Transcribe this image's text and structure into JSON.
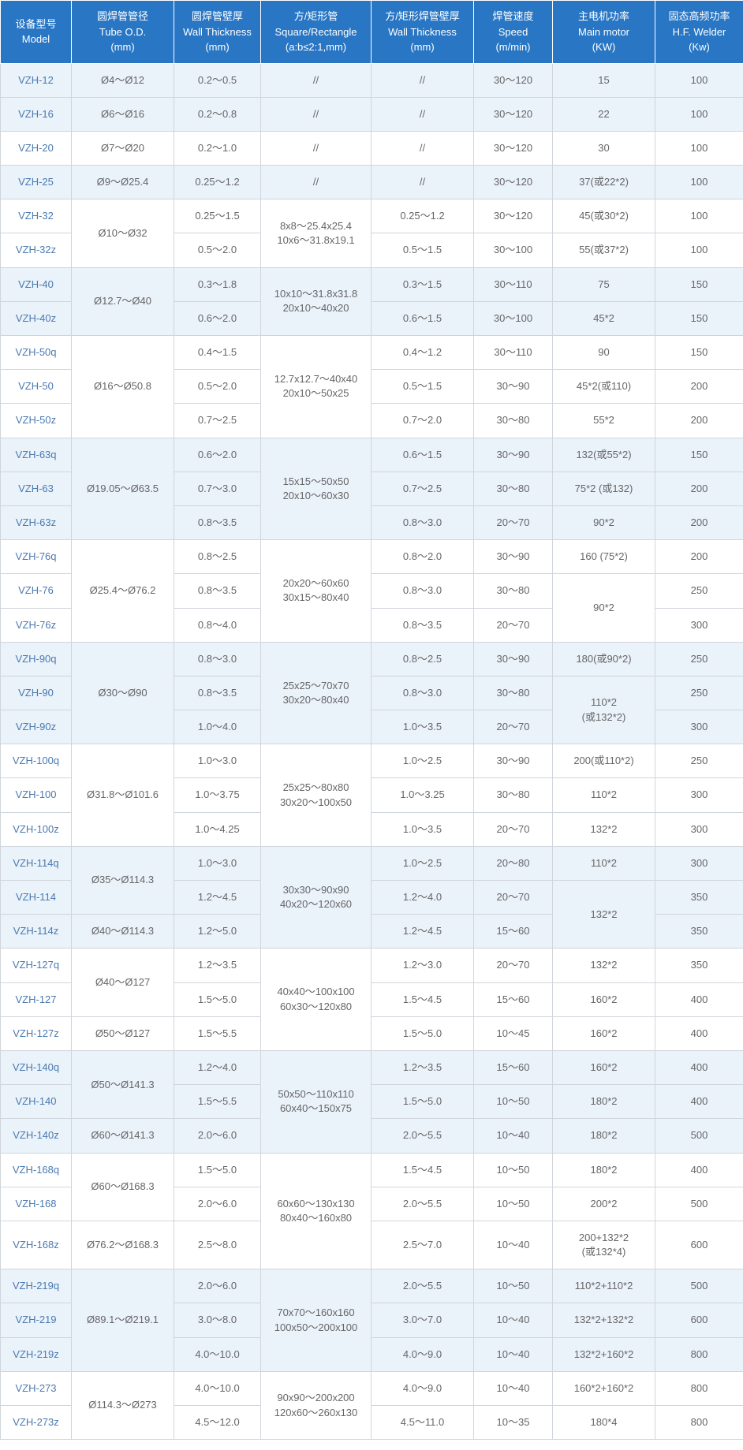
{
  "headers": [
    [
      "设备型号",
      "Model"
    ],
    [
      "圆焊管管径",
      "Tube O.D.",
      "(mm)"
    ],
    [
      "圆焊管壁厚",
      "Wall Thickness",
      "(mm)"
    ],
    [
      "方/矩形管",
      "Square/Rectangle",
      "(a:b≤2:1,mm)"
    ],
    [
      "方/矩形焊管壁厚",
      "Wall Thickness",
      "(mm)"
    ],
    [
      "焊管速度",
      "Speed",
      "(m/min)"
    ],
    [
      "主电机功率",
      "Main motor",
      "(KW)"
    ],
    [
      "固态高频功率",
      "H.F. Welder",
      "(Kw)"
    ]
  ],
  "rows": [
    {
      "tint": true,
      "cells": [
        {
          "t": "VZH-12",
          "m": 1
        },
        {
          "t": "Ø4～Ø12"
        },
        {
          "t": "0.2～0.5"
        },
        {
          "t": "//"
        },
        {
          "t": "//"
        },
        {
          "t": "30～120"
        },
        {
          "t": "15"
        },
        {
          "t": "100"
        }
      ]
    },
    {
      "tint": true,
      "cells": [
        {
          "t": "VZH-16",
          "m": 1
        },
        {
          "t": "Ø6～Ø16"
        },
        {
          "t": "0.2～0.8"
        },
        {
          "t": "//"
        },
        {
          "t": "//"
        },
        {
          "t": "30～120"
        },
        {
          "t": "22"
        },
        {
          "t": "100"
        }
      ]
    },
    {
      "tint": false,
      "cells": [
        {
          "t": "VZH-20",
          "m": 1
        },
        {
          "t": "Ø7～Ø20"
        },
        {
          "t": "0.2～1.0"
        },
        {
          "t": "//"
        },
        {
          "t": "//"
        },
        {
          "t": "30～120"
        },
        {
          "t": "30"
        },
        {
          "t": "100"
        }
      ]
    },
    {
      "tint": true,
      "cells": [
        {
          "t": "VZH-25",
          "m": 1
        },
        {
          "t": "Ø9～Ø25.4"
        },
        {
          "t": "0.25～1.2"
        },
        {
          "t": "//"
        },
        {
          "t": "//"
        },
        {
          "t": "30～120"
        },
        {
          "t": "37(或22*2)"
        },
        {
          "t": "100"
        }
      ]
    },
    {
      "tint": false,
      "cells": [
        {
          "t": "VZH-32",
          "m": 1
        },
        {
          "t": "Ø10～Ø32",
          "rs": 2
        },
        {
          "t": "0.25～1.5"
        },
        {
          "t": "8x8～25.4x25.4\n10x6～31.8x19.1",
          "rs": 2
        },
        {
          "t": "0.25～1.2"
        },
        {
          "t": "30～120"
        },
        {
          "t": "45(或30*2)"
        },
        {
          "t": "100"
        }
      ]
    },
    {
      "tint": false,
      "cells": [
        {
          "t": "VZH-32z",
          "m": 1
        },
        {
          "t": "0.5～2.0"
        },
        {
          "t": "0.5～1.5"
        },
        {
          "t": "30～100"
        },
        {
          "t": "55(或37*2)"
        },
        {
          "t": "100"
        }
      ]
    },
    {
      "tint": true,
      "cells": [
        {
          "t": "VZH-40",
          "m": 1
        },
        {
          "t": "Ø12.7～Ø40",
          "rs": 2
        },
        {
          "t": "0.3～1.8"
        },
        {
          "t": "10x10～31.8x31.8\n20x10～40x20",
          "rs": 2
        },
        {
          "t": "0.3～1.5"
        },
        {
          "t": "30～110"
        },
        {
          "t": "75"
        },
        {
          "t": "150"
        }
      ]
    },
    {
      "tint": true,
      "cells": [
        {
          "t": "VZH-40z",
          "m": 1
        },
        {
          "t": "0.6～2.0"
        },
        {
          "t": "0.6～1.5"
        },
        {
          "t": "30～100"
        },
        {
          "t": "45*2"
        },
        {
          "t": "150"
        }
      ]
    },
    {
      "tint": false,
      "cells": [
        {
          "t": "VZH-50q",
          "m": 1
        },
        {
          "t": "Ø16～Ø50.8",
          "rs": 3
        },
        {
          "t": "0.4～1.5"
        },
        {
          "t": "12.7x12.7～40x40\n20x10～50x25",
          "rs": 3
        },
        {
          "t": "0.4～1.2"
        },
        {
          "t": "30～110"
        },
        {
          "t": "90"
        },
        {
          "t": "150"
        }
      ]
    },
    {
      "tint": false,
      "cells": [
        {
          "t": "VZH-50",
          "m": 1
        },
        {
          "t": "0.5～2.0"
        },
        {
          "t": "0.5～1.5"
        },
        {
          "t": "30～90"
        },
        {
          "t": "45*2(或110)"
        },
        {
          "t": "200"
        }
      ]
    },
    {
      "tint": false,
      "cells": [
        {
          "t": "VZH-50z",
          "m": 1
        },
        {
          "t": "0.7～2.5"
        },
        {
          "t": "0.7～2.0"
        },
        {
          "t": "30～80"
        },
        {
          "t": "55*2"
        },
        {
          "t": "200"
        }
      ]
    },
    {
      "tint": true,
      "cells": [
        {
          "t": "VZH-63q",
          "m": 1
        },
        {
          "t": "Ø19.05～Ø63.5",
          "rs": 3
        },
        {
          "t": "0.6～2.0"
        },
        {
          "t": "15x15～50x50\n20x10～60x30",
          "rs": 3
        },
        {
          "t": "0.6～1.5"
        },
        {
          "t": "30～90"
        },
        {
          "t": "132(或55*2)"
        },
        {
          "t": "150"
        }
      ]
    },
    {
      "tint": true,
      "cells": [
        {
          "t": "VZH-63",
          "m": 1
        },
        {
          "t": "0.7～3.0"
        },
        {
          "t": "0.7～2.5"
        },
        {
          "t": "30～80"
        },
        {
          "t": "75*2 (或132)"
        },
        {
          "t": "200"
        }
      ]
    },
    {
      "tint": true,
      "cells": [
        {
          "t": "VZH-63z",
          "m": 1
        },
        {
          "t": "0.8～3.5"
        },
        {
          "t": "0.8～3.0"
        },
        {
          "t": "20～70"
        },
        {
          "t": "90*2"
        },
        {
          "t": "200"
        }
      ]
    },
    {
      "tint": false,
      "cells": [
        {
          "t": "VZH-76q",
          "m": 1
        },
        {
          "t": "Ø25.4～Ø76.2",
          "rs": 3
        },
        {
          "t": "0.8～2.5"
        },
        {
          "t": "20x20～60x60\n30x15～80x40",
          "rs": 3
        },
        {
          "t": "0.8～2.0"
        },
        {
          "t": "30～90"
        },
        {
          "t": "160 (75*2)"
        },
        {
          "t": "200"
        }
      ]
    },
    {
      "tint": false,
      "cells": [
        {
          "t": "VZH-76",
          "m": 1
        },
        {
          "t": "0.8～3.5"
        },
        {
          "t": "0.8～3.0"
        },
        {
          "t": "30～80"
        },
        {
          "t": "90*2",
          "rs": 2
        },
        {
          "t": "250"
        }
      ]
    },
    {
      "tint": false,
      "cells": [
        {
          "t": "VZH-76z",
          "m": 1
        },
        {
          "t": "0.8～4.0"
        },
        {
          "t": "0.8～3.5"
        },
        {
          "t": "20～70"
        },
        {
          "t": "300"
        }
      ]
    },
    {
      "tint": true,
      "cells": [
        {
          "t": "VZH-90q",
          "m": 1
        },
        {
          "t": "Ø30～Ø90",
          "rs": 3
        },
        {
          "t": "0.8～3.0"
        },
        {
          "t": "25x25～70x70\n30x20～80x40",
          "rs": 3
        },
        {
          "t": "0.8～2.5"
        },
        {
          "t": "30～90"
        },
        {
          "t": "180(或90*2)"
        },
        {
          "t": "250"
        }
      ]
    },
    {
      "tint": true,
      "cells": [
        {
          "t": "VZH-90",
          "m": 1
        },
        {
          "t": "0.8～3.5"
        },
        {
          "t": "0.8～3.0"
        },
        {
          "t": "30～80"
        },
        {
          "t": "110*2\n(或132*2)",
          "rs": 2
        },
        {
          "t": "250"
        }
      ]
    },
    {
      "tint": true,
      "cells": [
        {
          "t": "VZH-90z",
          "m": 1
        },
        {
          "t": "1.0～4.0"
        },
        {
          "t": "1.0～3.5"
        },
        {
          "t": "20～70"
        },
        {
          "t": "300"
        }
      ]
    },
    {
      "tint": false,
      "cells": [
        {
          "t": "VZH-100q",
          "m": 1
        },
        {
          "t": "Ø31.8～Ø101.6",
          "rs": 3
        },
        {
          "t": "1.0～3.0"
        },
        {
          "t": "25x25～80x80\n30x20～100x50",
          "rs": 3
        },
        {
          "t": "1.0～2.5"
        },
        {
          "t": "30～90"
        },
        {
          "t": "200(或110*2)"
        },
        {
          "t": "250"
        }
      ]
    },
    {
      "tint": false,
      "cells": [
        {
          "t": "VZH-100",
          "m": 1
        },
        {
          "t": "1.0～3.75"
        },
        {
          "t": "1.0～3.25"
        },
        {
          "t": "30～80"
        },
        {
          "t": "110*2"
        },
        {
          "t": "300"
        }
      ]
    },
    {
      "tint": false,
      "cells": [
        {
          "t": "VZH-100z",
          "m": 1
        },
        {
          "t": "1.0～4.25"
        },
        {
          "t": "1.0～3.5"
        },
        {
          "t": "20～70"
        },
        {
          "t": "132*2"
        },
        {
          "t": "300"
        }
      ]
    },
    {
      "tint": true,
      "cells": [
        {
          "t": "VZH-114q",
          "m": 1
        },
        {
          "t": "Ø35～Ø114.3",
          "rs": 2
        },
        {
          "t": "1.0～3.0"
        },
        {
          "t": "30x30～90x90\n40x20～120x60",
          "rs": 3
        },
        {
          "t": "1.0～2.5"
        },
        {
          "t": "20～80"
        },
        {
          "t": "110*2"
        },
        {
          "t": "300"
        }
      ]
    },
    {
      "tint": true,
      "cells": [
        {
          "t": "VZH-114",
          "m": 1
        },
        {
          "t": "1.2～4.5"
        },
        {
          "t": "1.2～4.0"
        },
        {
          "t": "20～70"
        },
        {
          "t": "132*2",
          "rs": 2
        },
        {
          "t": "350"
        }
      ]
    },
    {
      "tint": true,
      "cells": [
        {
          "t": "VZH-114z",
          "m": 1
        },
        {
          "t": "Ø40～Ø114.3"
        },
        {
          "t": "1.2～5.0"
        },
        {
          "t": "1.2～4.5"
        },
        {
          "t": "15～60"
        },
        {
          "t": "350"
        }
      ]
    },
    {
      "tint": false,
      "cells": [
        {
          "t": "VZH-127q",
          "m": 1
        },
        {
          "t": "Ø40～Ø127",
          "rs": 2
        },
        {
          "t": "1.2～3.5"
        },
        {
          "t": "40x40～100x100\n60x30～120x80",
          "rs": 3
        },
        {
          "t": "1.2～3.0"
        },
        {
          "t": "20～70"
        },
        {
          "t": "132*2"
        },
        {
          "t": "350"
        }
      ]
    },
    {
      "tint": false,
      "cells": [
        {
          "t": "VZH-127",
          "m": 1
        },
        {
          "t": "1.5～5.0"
        },
        {
          "t": "1.5～4.5"
        },
        {
          "t": "15～60"
        },
        {
          "t": "160*2"
        },
        {
          "t": "400"
        }
      ]
    },
    {
      "tint": false,
      "cells": [
        {
          "t": "VZH-127z",
          "m": 1
        },
        {
          "t": "Ø50～Ø127"
        },
        {
          "t": "1.5～5.5"
        },
        {
          "t": "1.5～5.0"
        },
        {
          "t": "10～45"
        },
        {
          "t": "160*2"
        },
        {
          "t": "400"
        }
      ]
    },
    {
      "tint": true,
      "cells": [
        {
          "t": "VZH-140q",
          "m": 1
        },
        {
          "t": "Ø50～Ø141.3",
          "rs": 2
        },
        {
          "t": "1.2～4.0"
        },
        {
          "t": "50x50～110x110\n60x40～150x75",
          "rs": 3
        },
        {
          "t": "1.2～3.5"
        },
        {
          "t": "15～60"
        },
        {
          "t": "160*2"
        },
        {
          "t": "400"
        }
      ]
    },
    {
      "tint": true,
      "cells": [
        {
          "t": "VZH-140",
          "m": 1
        },
        {
          "t": "1.5～5.5"
        },
        {
          "t": "1.5～5.0"
        },
        {
          "t": "10～50"
        },
        {
          "t": "180*2"
        },
        {
          "t": "400"
        }
      ]
    },
    {
      "tint": true,
      "cells": [
        {
          "t": "VZH-140z",
          "m": 1
        },
        {
          "t": "Ø60～Ø141.3"
        },
        {
          "t": "2.0～6.0"
        },
        {
          "t": "2.0～5.5"
        },
        {
          "t": "10～40"
        },
        {
          "t": "180*2"
        },
        {
          "t": "500"
        }
      ]
    },
    {
      "tint": false,
      "cells": [
        {
          "t": "VZH-168q",
          "m": 1
        },
        {
          "t": "Ø60～Ø168.3",
          "rs": 2
        },
        {
          "t": "1.5～5.0"
        },
        {
          "t": "60x60～130x130\n80x40～160x80",
          "rs": 3
        },
        {
          "t": "1.5～4.5"
        },
        {
          "t": "10～50"
        },
        {
          "t": "180*2"
        },
        {
          "t": "400"
        }
      ]
    },
    {
      "tint": false,
      "cells": [
        {
          "t": "VZH-168",
          "m": 1
        },
        {
          "t": "2.0～6.0"
        },
        {
          "t": "2.0～5.5"
        },
        {
          "t": "10～50"
        },
        {
          "t": "200*2"
        },
        {
          "t": "500"
        }
      ]
    },
    {
      "tint": false,
      "cells": [
        {
          "t": "VZH-168z",
          "m": 1
        },
        {
          "t": "Ø76.2～Ø168.3"
        },
        {
          "t": "2.5～8.0"
        },
        {
          "t": "2.5～7.0"
        },
        {
          "t": "10～40"
        },
        {
          "t": "200+132*2\n(或132*4)"
        },
        {
          "t": "600"
        }
      ]
    },
    {
      "tint": true,
      "cells": [
        {
          "t": "VZH-219q",
          "m": 1
        },
        {
          "t": "Ø89.1～Ø219.1",
          "rs": 3
        },
        {
          "t": "2.0～6.0"
        },
        {
          "t": "70x70～160x160\n100x50～200x100",
          "rs": 3
        },
        {
          "t": "2.0～5.5"
        },
        {
          "t": "10～50"
        },
        {
          "t": "110*2+110*2"
        },
        {
          "t": "500"
        }
      ]
    },
    {
      "tint": true,
      "cells": [
        {
          "t": "VZH-219",
          "m": 1
        },
        {
          "t": "3.0～8.0"
        },
        {
          "t": "3.0～7.0"
        },
        {
          "t": "10～40"
        },
        {
          "t": "132*2+132*2"
        },
        {
          "t": "600"
        }
      ]
    },
    {
      "tint": true,
      "cells": [
        {
          "t": "VZH-219z",
          "m": 1
        },
        {
          "t": "4.0～10.0"
        },
        {
          "t": "4.0～9.0"
        },
        {
          "t": "10～40"
        },
        {
          "t": "132*2+160*2"
        },
        {
          "t": "800"
        }
      ]
    },
    {
      "tint": false,
      "cells": [
        {
          "t": "VZH-273",
          "m": 1
        },
        {
          "t": "Ø114.3～Ø273",
          "rs": 2
        },
        {
          "t": "4.0～10.0"
        },
        {
          "t": "90x90～200x200\n120x60～260x130",
          "rs": 2
        },
        {
          "t": "4.0～9.0"
        },
        {
          "t": "10～40"
        },
        {
          "t": "160*2+160*2"
        },
        {
          "t": "800"
        }
      ]
    },
    {
      "tint": false,
      "cells": [
        {
          "t": "VZH-273z",
          "m": 1
        },
        {
          "t": "4.5～12.0"
        },
        {
          "t": "4.5～11.0"
        },
        {
          "t": "10～35"
        },
        {
          "t": "180*4"
        },
        {
          "t": "800"
        }
      ]
    }
  ]
}
